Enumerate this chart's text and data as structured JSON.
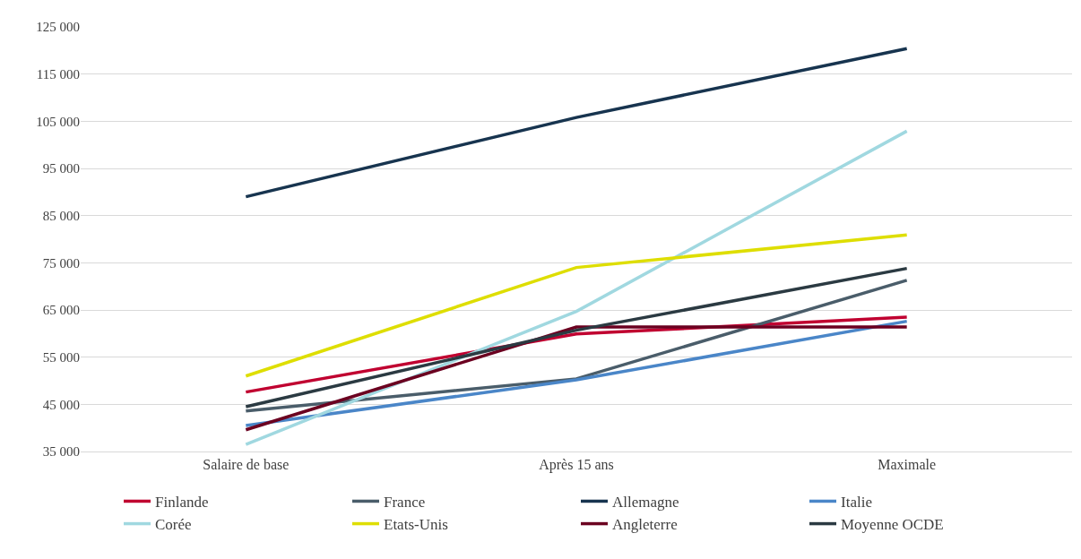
{
  "chart_data": {
    "type": "line",
    "categories": [
      "Salaire de base",
      "Après 15 ans",
      "Maximale"
    ],
    "series": [
      {
        "name": "Finlande",
        "color": "#c00030",
        "values": [
          47600,
          59900,
          63500
        ]
      },
      {
        "name": "France",
        "color": "#4a5d6a",
        "values": [
          43600,
          50400,
          71300
        ]
      },
      {
        "name": "Allemagne",
        "color": "#17344f",
        "values": [
          89000,
          105800,
          120400
        ]
      },
      {
        "name": "Italie",
        "color": "#4a86c8",
        "values": [
          40500,
          50200,
          62600
        ]
      },
      {
        "name": "Corée",
        "color": "#a0d8e0",
        "values": [
          36500,
          64700,
          102900
        ]
      },
      {
        "name": "Etats-Unis",
        "color": "#dede00",
        "values": [
          51000,
          74000,
          80900
        ]
      },
      {
        "name": "Angleterre",
        "color": "#6b0020",
        "values": [
          39600,
          61400,
          61400
        ]
      },
      {
        "name": "Moyenne OCDE",
        "color": "#2b3a42",
        "values": [
          44500,
          60700,
          73800
        ]
      }
    ],
    "ylim": [
      35000,
      125000
    ],
    "yticks": [
      {
        "value": 35000,
        "label": "35 000"
      },
      {
        "value": 45000,
        "label": "45 000"
      },
      {
        "value": 55000,
        "label": "55 000"
      },
      {
        "value": 65000,
        "label": "65 000"
      },
      {
        "value": 75000,
        "label": "75 000"
      },
      {
        "value": 85000,
        "label": "85 000"
      },
      {
        "value": 95000,
        "label": "95 000"
      },
      {
        "value": 105000,
        "label": "105 000"
      },
      {
        "value": 115000,
        "label": "115 000"
      },
      {
        "value": 125000,
        "label": "125 000"
      }
    ],
    "grid": "y",
    "legend": "bottom",
    "marker": "none",
    "line_style": "solid"
  }
}
